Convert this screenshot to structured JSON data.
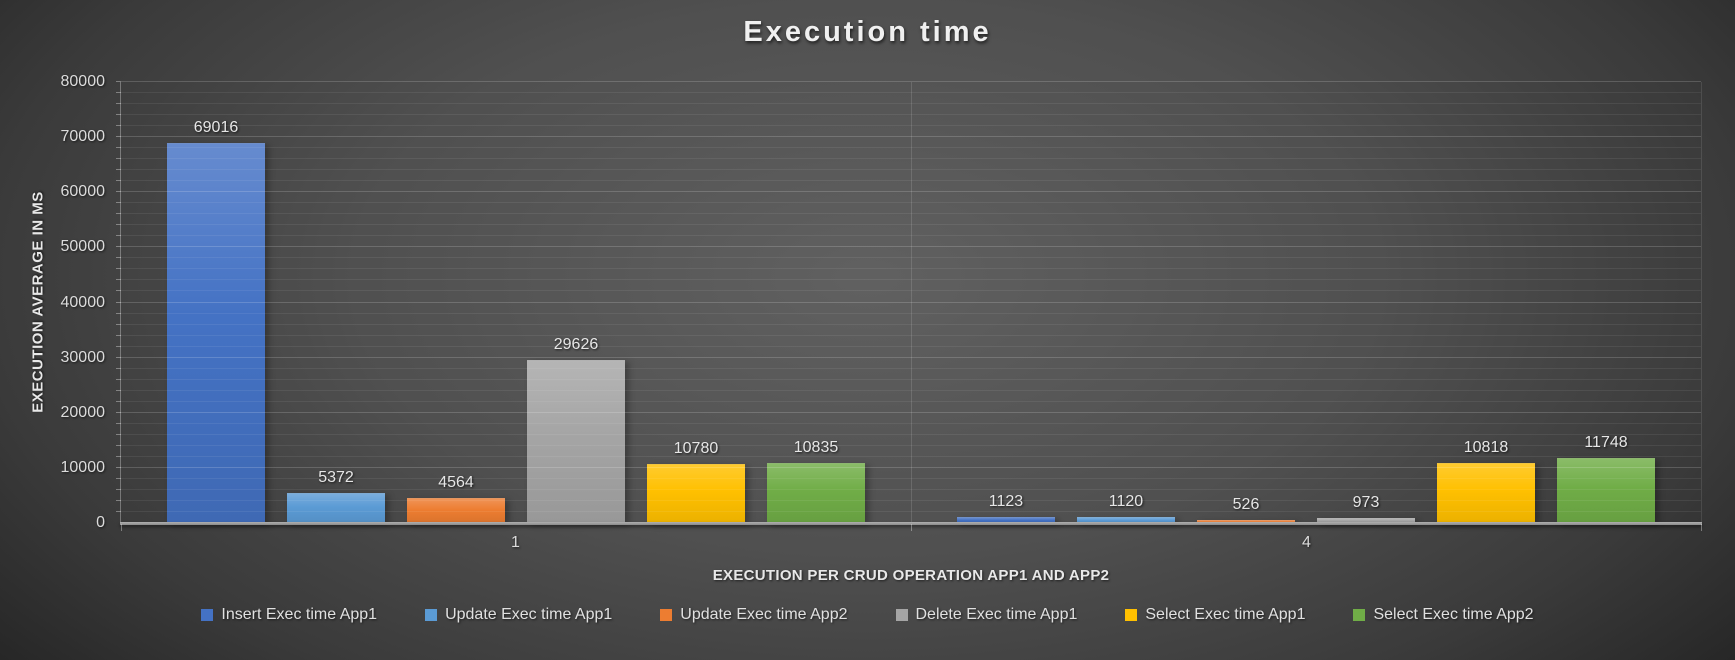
{
  "title": "Execution time",
  "chart_data": {
    "type": "bar",
    "title": "Execution time",
    "xlabel": "EXECUTION PER CRUD OPERATION APP1 AND APP2",
    "ylabel": "EXECUTION  AVERAGE IN MS",
    "categories": [
      "1",
      "4"
    ],
    "series": [
      {
        "name": "Insert Exec time App1",
        "color": "#4472C4",
        "values": [
          69016,
          1123
        ]
      },
      {
        "name": "Update Exec time App1",
        "color": "#5B9BD5",
        "values": [
          5372,
          1120
        ]
      },
      {
        "name": "Update Exec time App2",
        "color": "#ED7D31",
        "values": [
          4564,
          526
        ]
      },
      {
        "name": "Delete Exec time App1",
        "color": "#A5A5A5",
        "values": [
          29626,
          973
        ]
      },
      {
        "name": "Select Exec time App1",
        "color": "#FFC000",
        "values": [
          10780,
          10818
        ]
      },
      {
        "name": "Select Exec time App2",
        "color": "#70AD47",
        "values": [
          10835,
          11748
        ]
      }
    ],
    "ylim": [
      0,
      80000
    ],
    "yticks": [
      0,
      10000,
      20000,
      30000,
      40000,
      50000,
      60000,
      70000,
      80000
    ],
    "minor_step": 2000,
    "grid": true,
    "legend_position": "bottom"
  }
}
